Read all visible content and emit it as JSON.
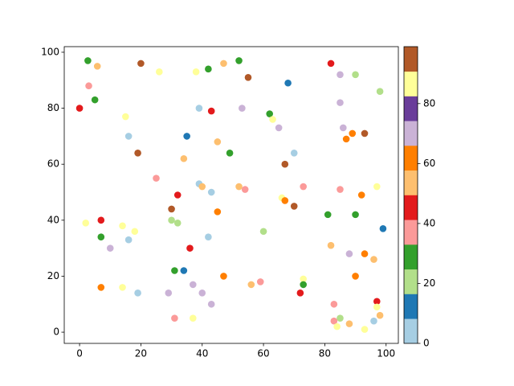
{
  "chart_data": {
    "type": "scatter",
    "x": [
      2.7,
      5.8,
      20,
      26,
      38,
      42,
      47,
      52,
      55,
      68,
      82,
      85,
      90,
      3,
      5,
      0,
      15,
      39,
      43,
      53,
      85,
      98,
      62,
      63,
      65,
      16,
      35,
      86,
      89,
      93,
      87,
      45,
      19,
      49,
      70,
      34,
      67,
      25,
      39,
      40,
      43,
      52,
      54,
      73,
      85,
      97,
      32,
      92,
      66,
      67,
      70,
      30,
      45,
      81,
      90,
      2,
      7,
      30,
      32,
      14,
      99,
      18,
      60,
      7,
      16,
      42,
      82,
      10,
      36,
      88,
      93,
      96,
      31,
      34,
      47,
      90,
      73,
      73,
      7,
      14,
      37,
      56,
      59,
      19,
      29,
      40,
      72,
      43,
      83,
      97,
      97,
      31,
      37,
      85,
      83,
      88,
      84,
      96,
      93,
      98
    ],
    "y": [
      97,
      95,
      96,
      93,
      93,
      94,
      96,
      97,
      91,
      89,
      96,
      92,
      92,
      88,
      83,
      80,
      77,
      80,
      79,
      80,
      82,
      86,
      78,
      76,
      73,
      70,
      70,
      73,
      71,
      71,
      69,
      68,
      64,
      64,
      64,
      62,
      60,
      55,
      53,
      52,
      50,
      52,
      51,
      52,
      51,
      52,
      49,
      49,
      48,
      47,
      45,
      44,
      43,
      42,
      42,
      39,
      40,
      40,
      39,
      38,
      37,
      36,
      36,
      34,
      33,
      34,
      31,
      30,
      30,
      28,
      28,
      26,
      22,
      22,
      20,
      20,
      19,
      17,
      16,
      16,
      17,
      17,
      18,
      14,
      14,
      14,
      14,
      10,
      10,
      11,
      9,
      5,
      5,
      5,
      4,
      3,
      2,
      4,
      1,
      6
    ],
    "c": [
      28,
      54,
      95,
      85,
      85,
      28,
      54,
      28,
      95,
      12,
      45,
      70,
      20,
      37,
      28,
      45,
      87,
      4,
      45,
      70,
      70,
      20,
      28,
      85,
      70,
      4,
      12,
      70,
      62,
      95,
      62,
      54,
      95,
      28,
      4,
      54,
      95,
      37,
      4,
      54,
      4,
      54,
      37,
      37,
      37,
      87,
      45,
      62,
      87,
      62,
      95,
      95,
      62,
      28,
      28,
      85,
      45,
      20,
      20,
      87,
      12,
      85,
      20,
      28,
      4,
      4,
      54,
      70,
      45,
      70,
      62,
      54,
      28,
      12,
      62,
      62,
      87,
      28,
      62,
      87,
      70,
      54,
      37,
      4,
      70,
      70,
      45,
      70,
      37,
      45,
      87,
      37,
      85,
      20,
      37,
      54,
      85,
      4,
      87,
      54
    ],
    "colormap": [
      "#a6cee3",
      "#1f78b4",
      "#b2df8a",
      "#33a02c",
      "#fb9a99",
      "#e31a1c",
      "#fdbf6f",
      "#ff7f00",
      "#cab2d6",
      "#6a3d9a",
      "#ffff99",
      "#b15928"
    ],
    "clim": [
      0,
      99
    ],
    "cticks": [
      0,
      20,
      40,
      60,
      80
    ],
    "xlim": [
      -5,
      104
    ],
    "xticks": [
      0,
      20,
      40,
      60,
      80,
      100
    ],
    "ylim": [
      -4,
      102
    ],
    "yticks": [
      0,
      20,
      40,
      60,
      80,
      100
    ]
  }
}
